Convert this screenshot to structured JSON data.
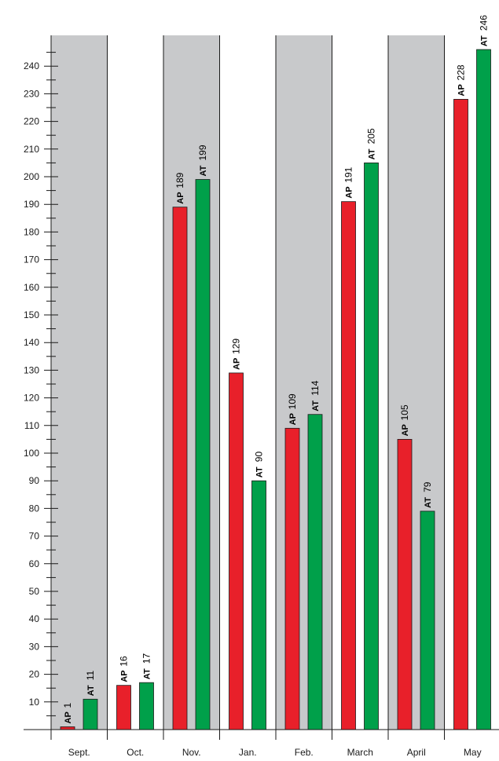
{
  "chart_data": {
    "type": "bar",
    "title": "",
    "xlabel": "",
    "ylabel": "",
    "categories": [
      "Sept.",
      "Oct.",
      "Nov.",
      "Jan.",
      "Feb.",
      "March",
      "April",
      "May"
    ],
    "series": [
      {
        "name": "AP",
        "color": "#e8202a",
        "values": [
          1,
          16,
          189,
          129,
          109,
          191,
          105,
          228
        ]
      },
      {
        "name": "AT",
        "color": "#00a04a",
        "values": [
          11,
          17,
          199,
          90,
          114,
          205,
          79,
          246
        ]
      }
    ],
    "ylim": [
      0,
      250
    ],
    "yticks": [
      10,
      20,
      30,
      40,
      50,
      60,
      70,
      80,
      90,
      100,
      110,
      120,
      130,
      140,
      150,
      160,
      170,
      180,
      190,
      200,
      210,
      220,
      230,
      240
    ],
    "shaded_categories": [
      "Sept.",
      "Nov.",
      "Feb.",
      "April"
    ],
    "shade_color": "#c8c9cb",
    "legend": "none",
    "grid": false
  }
}
